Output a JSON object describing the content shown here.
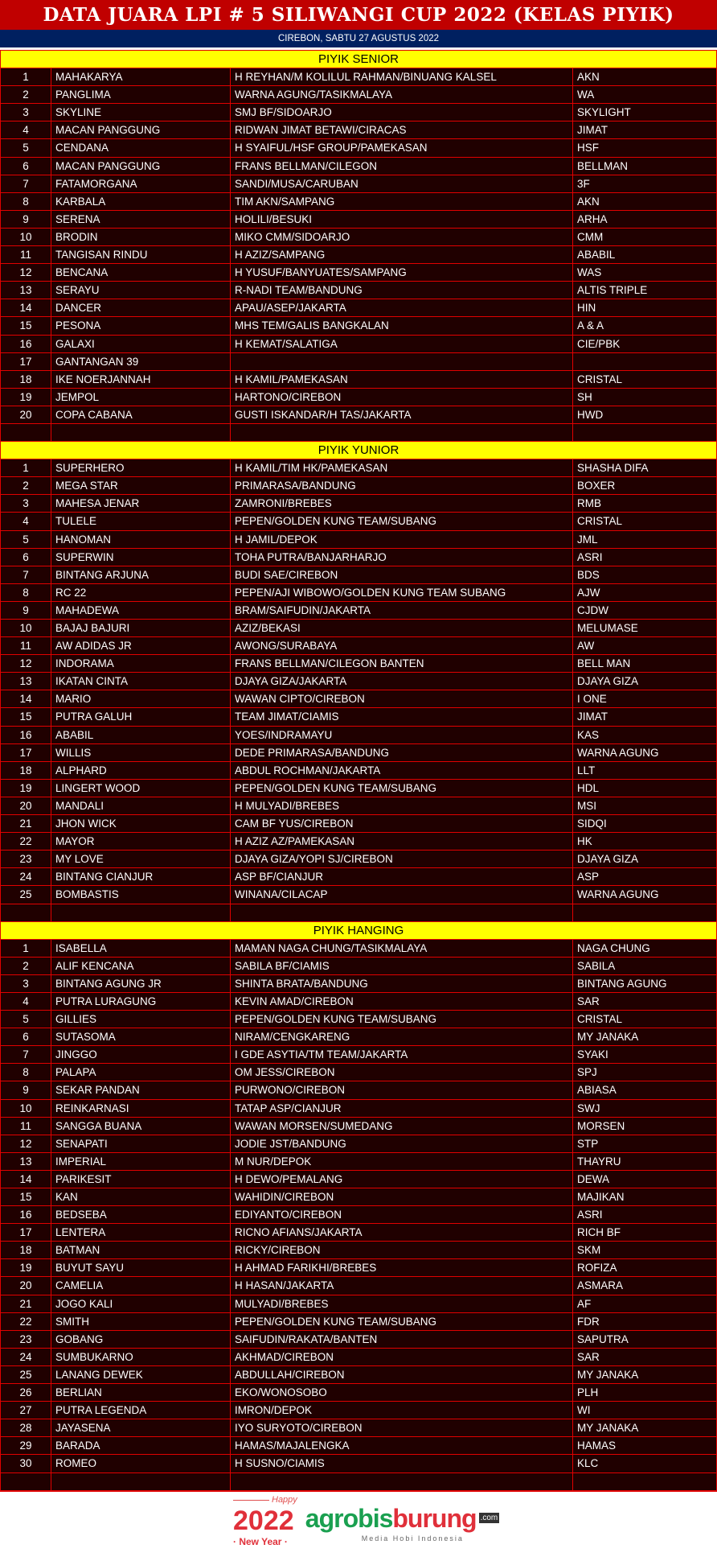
{
  "title": "DATA JUARA LPI # 5 SILIWANGI CUP 2022 (KELAS PIYIK)",
  "subtitle": "CIREBON, SABTU 27 AGUSTUS 2022",
  "colors": {
    "title_bg": "#c00000",
    "subtitle_bg": "#002060",
    "section_bg": "#ffff00",
    "row_bg": "#200000",
    "border": "#e00000"
  },
  "sections": [
    {
      "title": "PIYIK SENIOR",
      "rows": [
        [
          "1",
          "MAHAKARYA",
          "H REYHAN/M KOLILUL RAHMAN/BINUANG KALSEL",
          "AKN"
        ],
        [
          "2",
          "PANGLIMA",
          "WARNA AGUNG/TASIKMALAYA",
          "WA"
        ],
        [
          "3",
          "SKYLINE",
          "SMJ BF/SIDOARJO",
          "SKYLIGHT"
        ],
        [
          "4",
          "MACAN PANGGUNG",
          "RIDWAN JIMAT BETAWI/CIRACAS",
          "JIMAT"
        ],
        [
          "5",
          "CENDANA",
          "H SYAIFUL/HSF GROUP/PAMEKASAN",
          "HSF"
        ],
        [
          "6",
          "MACAN PANGGUNG",
          "FRANS BELLMAN/CILEGON",
          "BELLMAN"
        ],
        [
          "7",
          "FATAMORGANA",
          "SANDI/MUSA/CARUBAN",
          "3F"
        ],
        [
          "8",
          "KARBALA",
          "TIM AKN/SAMPANG",
          "AKN"
        ],
        [
          "9",
          "SERENA",
          "HOLILI/BESUKI",
          "ARHA"
        ],
        [
          "10",
          "BRODIN",
          "MIKO CMM/SIDOARJO",
          "CMM"
        ],
        [
          "11",
          "TANGISAN RINDU",
          "H AZIZ/SAMPANG",
          "ABABIL"
        ],
        [
          "12",
          "BENCANA",
          "H YUSUF/BANYUATES/SAMPANG",
          "WAS"
        ],
        [
          "13",
          "SERAYU",
          "R-NADI TEAM/BANDUNG",
          "ALTIS TRIPLE"
        ],
        [
          "14",
          "DANCER",
          "APAU/ASEP/JAKARTA",
          "HIN"
        ],
        [
          "15",
          "PESONA",
          "MHS TEM/GALIS BANGKALAN",
          "A & A"
        ],
        [
          "16",
          "GALAXI",
          "H KEMAT/SALATIGA",
          "CIE/PBK"
        ],
        [
          "17",
          "GANTANGAN 39",
          "",
          ""
        ],
        [
          "18",
          "IKE NOERJANNAH",
          "H KAMIL/PAMEKASAN",
          "CRISTAL"
        ],
        [
          "19",
          "JEMPOL",
          "HARTONO/CIREBON",
          "SH"
        ],
        [
          "20",
          "COPA CABANA",
          "GUSTI ISKANDAR/H TAS/JAKARTA",
          "HWD"
        ],
        [
          "",
          "",
          "",
          ""
        ]
      ]
    },
    {
      "title": "PIYIK YUNIOR",
      "rows": [
        [
          "1",
          "SUPERHERO",
          "H KAMIL/TIM HK/PAMEKASAN",
          "SHASHA DIFA"
        ],
        [
          "2",
          "MEGA STAR",
          "PRIMARASA/BANDUNG",
          "BOXER"
        ],
        [
          "3",
          "MAHESA JENAR",
          "ZAMRONI/BREBES",
          "RMB"
        ],
        [
          "4",
          "TULELE",
          "PEPEN/GOLDEN KUNG TEAM/SUBANG",
          "CRISTAL"
        ],
        [
          "5",
          "HANOMAN",
          "H JAMIL/DEPOK",
          "JML"
        ],
        [
          "6",
          "SUPERWIN",
          "TOHA PUTRA/BANJARHARJO",
          "ASRI"
        ],
        [
          "7",
          "BINTANG ARJUNA",
          "BUDI SAE/CIREBON",
          "BDS"
        ],
        [
          "8",
          "RC 22",
          "PEPEN/AJI WIBOWO/GOLDEN KUNG TEAM SUBANG",
          "AJW"
        ],
        [
          "9",
          "MAHADEWA",
          "BRAM/SAIFUDIN/JAKARTA",
          "CJDW"
        ],
        [
          "10",
          "BAJAJ BAJURI",
          "AZIZ/BEKASI",
          "MELUMASE"
        ],
        [
          "11",
          "AW ADIDAS JR",
          "AWONG/SURABAYA",
          "AW"
        ],
        [
          "12",
          "INDORAMA",
          "FRANS BELLMAN/CILEGON BANTEN",
          "BELL MAN"
        ],
        [
          "13",
          "IKATAN CINTA",
          "DJAYA GIZA/JAKARTA",
          "DJAYA GIZA"
        ],
        [
          "14",
          "MARIO",
          "WAWAN CIPTO/CIREBON",
          "I ONE"
        ],
        [
          "15",
          "PUTRA GALUH",
          "TEAM JIMAT/CIAMIS",
          "JIMAT"
        ],
        [
          "16",
          "ABABIL",
          "YOES/INDRAMAYU",
          "KAS"
        ],
        [
          "17",
          "WILLIS",
          "DEDE PRIMARASA/BANDUNG",
          "WARNA AGUNG"
        ],
        [
          "18",
          "ALPHARD",
          "ABDUL ROCHMAN/JAKARTA",
          "LLT"
        ],
        [
          "19",
          "LINGERT WOOD",
          "PEPEN/GOLDEN KUNG TEAM/SUBANG",
          "HDL"
        ],
        [
          "20",
          "MANDALI",
          "H MULYADI/BREBES",
          "MSI"
        ],
        [
          "21",
          "JHON WICK",
          "CAM BF YUS/CIREBON",
          "SIDQI"
        ],
        [
          "22",
          "MAYOR",
          "H AZIZ AZ/PAMEKASAN",
          "HK"
        ],
        [
          "23",
          "MY LOVE",
          "DJAYA GIZA/YOPI SJ/CIREBON",
          "DJAYA GIZA"
        ],
        [
          "24",
          "BINTANG CIANJUR",
          "ASP BF/CIANJUR",
          "ASP"
        ],
        [
          "25",
          "BOMBASTIS",
          "WINANA/CILACAP",
          "WARNA AGUNG"
        ],
        [
          "",
          "",
          "",
          ""
        ]
      ]
    },
    {
      "title": "PIYIK HANGING",
      "rows": [
        [
          "1",
          "ISABELLA",
          "MAMAN NAGA CHUNG/TASIKMALAYA",
          "NAGA CHUNG"
        ],
        [
          "2",
          "ALIF KENCANA",
          "SABILA BF/CIAMIS",
          "SABILA"
        ],
        [
          "3",
          "BINTANG AGUNG JR",
          "SHINTA BRATA/BANDUNG",
          "BINTANG AGUNG"
        ],
        [
          "4",
          "PUTRA LURAGUNG",
          "KEVIN AMAD/CIREBON",
          "SAR"
        ],
        [
          "5",
          "GILLIES",
          "PEPEN/GOLDEN KUNG TEAM/SUBANG",
          "CRISTAL"
        ],
        [
          "6",
          "SUTASOMA",
          "NIRAM/CENGKARENG",
          "MY JANAKA"
        ],
        [
          "7",
          "JINGGO",
          "I GDE ASYTIA/TM TEAM/JAKARTA",
          "SYAKI"
        ],
        [
          "8",
          "PALAPA",
          "OM JESS/CIREBON",
          "SPJ"
        ],
        [
          "9",
          "SEKAR PANDAN",
          "PURWONO/CIREBON",
          " ABIASA"
        ],
        [
          "10",
          "REINKARNASI",
          "TATAP ASP/CIANJUR",
          "SWJ"
        ],
        [
          "11",
          "SANGGA BUANA",
          "WAWAN MORSEN/SUMEDANG",
          "MORSEN"
        ],
        [
          "12",
          "SENAPATI",
          "JODIE JST/BANDUNG",
          "STP"
        ],
        [
          "13",
          "IMPERIAL",
          "M NUR/DEPOK",
          "THAYRU"
        ],
        [
          "14",
          "PARIKESIT",
          "H DEWO/PEMALANG",
          "DEWA"
        ],
        [
          "15",
          "KAN",
          "WAHIDIN/CIREBON",
          "MAJIKAN"
        ],
        [
          "16",
          "BEDSEBA",
          "EDIYANTO/CIREBON",
          "ASRI"
        ],
        [
          "17",
          "LENTERA",
          "RICNO AFIANS/JAKARTA",
          "RICH BF"
        ],
        [
          "18",
          "BATMAN",
          "RICKY/CIREBON",
          "SKM"
        ],
        [
          "19",
          "BUYUT SAYU",
          "H AHMAD FARIKHI/BREBES",
          "ROFIZA"
        ],
        [
          "20",
          "CAMELIA",
          "H HASAN/JAKARTA",
          "ASMARA"
        ],
        [
          "21",
          "JOGO KALI",
          "MULYADI/BREBES",
          "AF"
        ],
        [
          "22",
          "SMITH",
          "PEPEN/GOLDEN KUNG TEAM/SUBANG",
          "FDR"
        ],
        [
          "23",
          "GOBANG",
          "SAIFUDIN/RAKATA/BANTEN",
          "SAPUTRA"
        ],
        [
          "24",
          "SUMBUKARNO",
          "AKHMAD/CIREBON",
          "SAR"
        ],
        [
          "25",
          "LANANG DEWEK",
          "ABDULLAH/CIREBON",
          "MY JANAKA"
        ],
        [
          "26",
          "BERLIAN",
          "EKO/WONOSOBO",
          "PLH"
        ],
        [
          "27",
          "PUTRA LEGENDA",
          "IMRON/DEPOK",
          "WI"
        ],
        [
          "28",
          "JAYASENA",
          "IYO SURYOTO/CIREBON",
          "MY JANAKA"
        ],
        [
          "29",
          "BARADA",
          "HAMAS/MAJALENGKA",
          "HAMAS"
        ],
        [
          "30",
          "ROMEO",
          "H SUSNO/CIAMIS",
          "KLC"
        ],
        [
          "",
          "",
          "",
          ""
        ]
      ]
    }
  ],
  "logo": {
    "happy": "Happy",
    "year": "2022",
    "new_year": "· New Year ·",
    "brand_a": "agrobis",
    "brand_b": "burung",
    "tld": ".com",
    "tagline": "Media Hobi Indonesia"
  }
}
